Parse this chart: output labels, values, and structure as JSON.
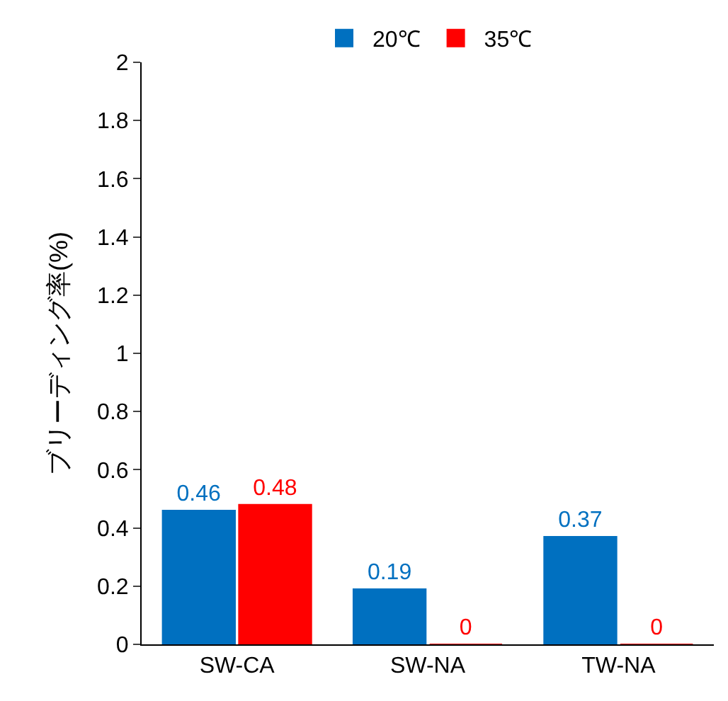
{
  "chart_data": {
    "type": "bar",
    "ylabel": "ブリーディング率(%)",
    "categories": [
      "SW-CA",
      "SW-NA",
      "TW-NA"
    ],
    "series": [
      {
        "name": "20℃",
        "color": "#0070c0",
        "values": [
          0.46,
          0.19,
          0.37
        ]
      },
      {
        "name": "35℃",
        "color": "#ff0000",
        "values": [
          0.48,
          0,
          0
        ]
      }
    ],
    "ylim": [
      0,
      2
    ],
    "yticks": [
      0,
      0.2,
      0.4,
      0.6,
      0.8,
      1,
      1.2,
      1.4,
      1.6,
      1.8,
      2
    ],
    "data_labels": true,
    "legend": "top"
  }
}
